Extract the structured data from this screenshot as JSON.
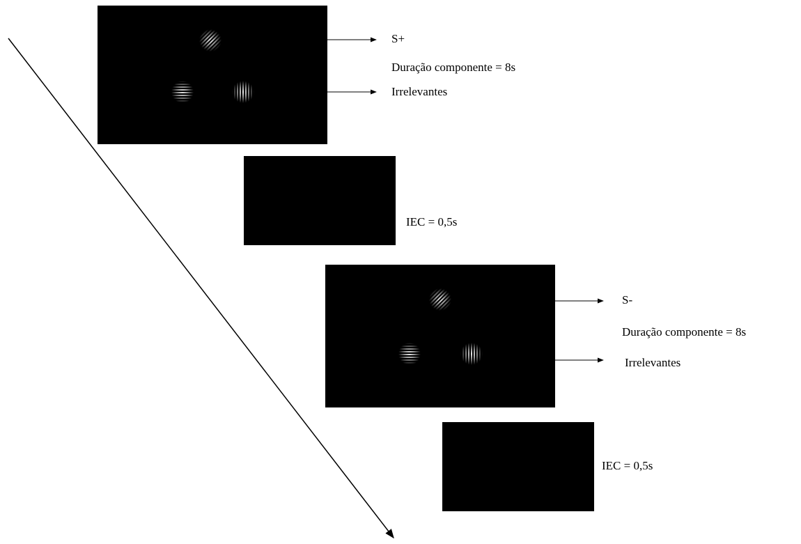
{
  "frames": [
    {
      "stimulus": "S+",
      "duration": "Duração componente = 8s",
      "distractors": "Irrelevantes"
    },
    {
      "interval": "IEC = 0,5s"
    },
    {
      "stimulus": "S-",
      "duration": "Duração componente = 8s",
      "distractors": "Irrelevantes"
    },
    {
      "interval": "IEC = 0,5s"
    }
  ]
}
